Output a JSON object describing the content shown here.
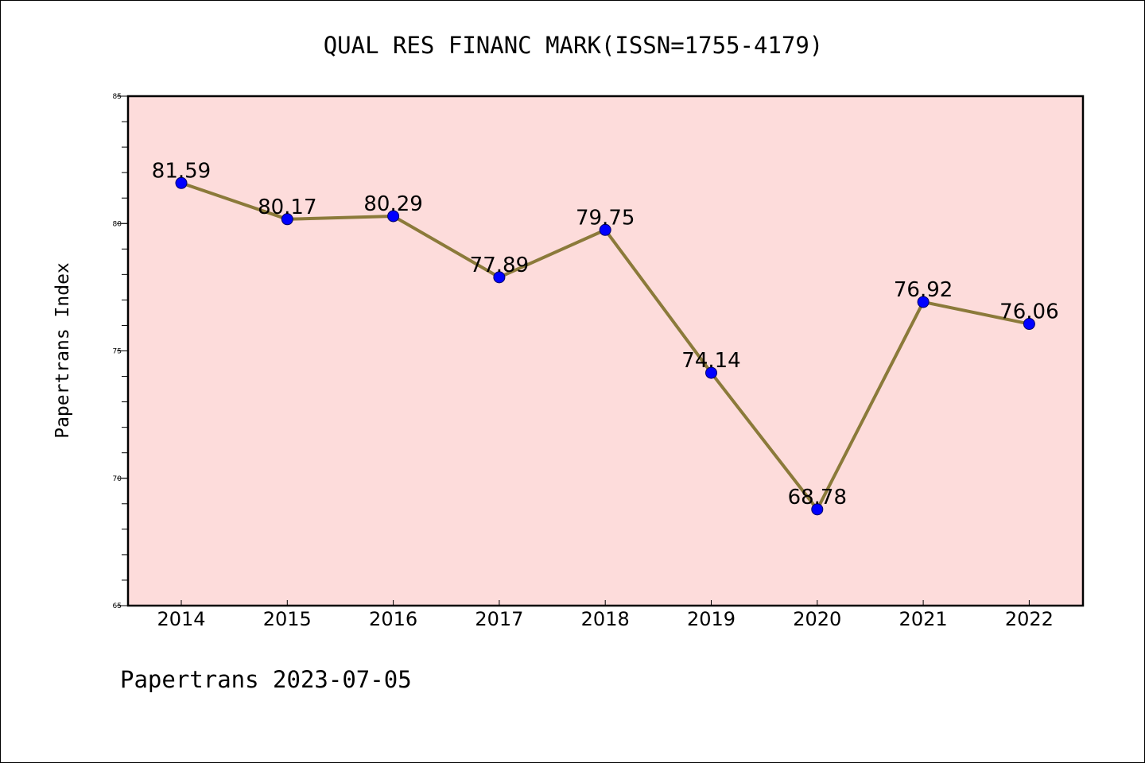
{
  "chart_data": {
    "type": "line",
    "title": "QUAL RES FINANC MARK(ISSN=1755-4179)",
    "xlabel": "",
    "ylabel": "Papertrans Index",
    "categories": [
      "2014",
      "2015",
      "2016",
      "2017",
      "2018",
      "2019",
      "2020",
      "2021",
      "2022"
    ],
    "series": [
      {
        "values": [
          81.59,
          80.17,
          80.29,
          77.89,
          79.75,
          74.14,
          68.78,
          76.92,
          76.06
        ]
      }
    ],
    "data_labels": [
      "81.59",
      "80.17",
      "80.29",
      "77.89",
      "79.75",
      "74.14",
      "68.78",
      "76.92",
      "76.06"
    ],
    "ylim": [
      65,
      85
    ],
    "y_ticks": [
      "65",
      "70",
      "75",
      "80",
      "85"
    ],
    "y_minor_step": 1,
    "grid": false,
    "legend": "none",
    "colors": {
      "plot_background": "#fddcdb",
      "line": "#8b7a3a",
      "marker": "#0000ff",
      "axes": "#000000"
    }
  },
  "footer": "Papertrans 2023-07-05"
}
